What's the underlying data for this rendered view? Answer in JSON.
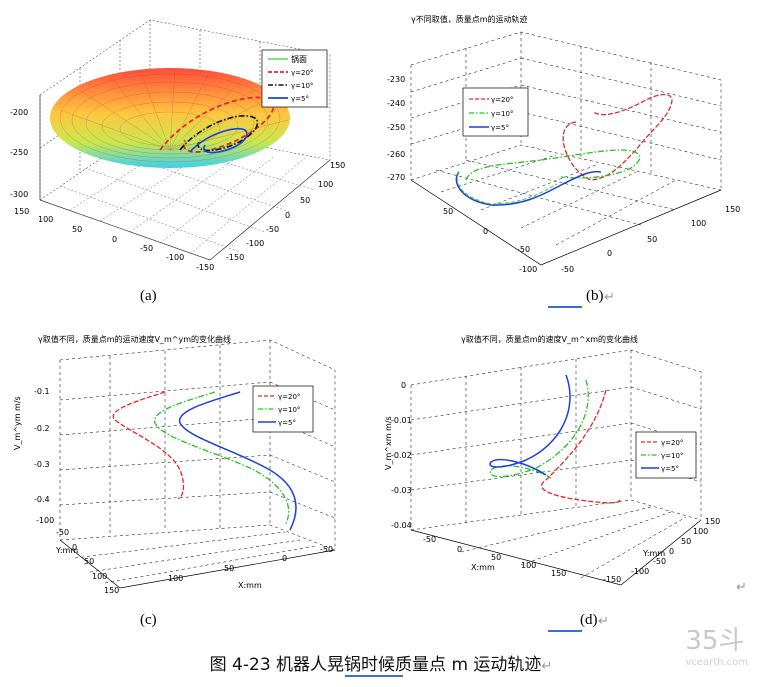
{
  "figure": {
    "caption": "图 4-23  机器人晃锅时候质量点 m 运动轨迹",
    "watermark": "35斗",
    "watermark_sub": "vcearth.com",
    "return_mark": "↵"
  },
  "panels": [
    {
      "label": "(a)",
      "legend": [
        "锅面",
        "γ=20°",
        "γ=10°",
        "γ=5°"
      ],
      "z_ticks": [
        "-200",
        "-250",
        "-300"
      ],
      "x_ticks": [
        "150",
        "100",
        "50",
        "0",
        "-50",
        "-100",
        "-150"
      ],
      "y_ticks": [
        "150",
        "100",
        "50",
        "0",
        "-50",
        "-100",
        "-150"
      ]
    },
    {
      "label": "(b)",
      "title": "γ不同取值，质量点m的运动轨迹",
      "legend": [
        "γ=20°",
        "γ=10°",
        "γ=5°"
      ],
      "z_ticks": [
        "-230",
        "-240",
        "-250",
        "-260",
        "-270"
      ],
      "x_ticks": [
        "50",
        "0",
        "-50",
        "-100"
      ],
      "y_ticks": [
        "150",
        "100",
        "50",
        "0",
        "-50"
      ]
    },
    {
      "label": "(c)",
      "title": "γ取值不同，质量点m的运动速度V_m^ym的变化曲线",
      "ylabel": "V_m^ym m/s",
      "xlabel": "X:mm",
      "ylabel2": "Y:mm",
      "legend": [
        "γ=20°",
        "γ=10°",
        "γ=5°"
      ],
      "z_ticks": [
        "-0.1",
        "-0.2",
        "-0.3",
        "-0.4"
      ],
      "y_ticks": [
        "-100",
        "-50",
        "0",
        "50",
        "100",
        "150"
      ],
      "x_ticks": [
        "100",
        "50",
        "0",
        "-50"
      ]
    },
    {
      "label": "(d)",
      "title": "γ取值不同，质量点m的速度V_m^xm的变化曲线",
      "ylabel": "V_m^xm m/s",
      "xlabel": "X:mm",
      "ylabel2": "Y:mm",
      "legend": [
        "γ=20°",
        "γ=10°",
        "γ=5°"
      ],
      "z_ticks": [
        "0",
        "-0.01",
        "-0.02",
        "-0.03",
        "-0.04"
      ],
      "x_ticks": [
        "-50",
        "0",
        "50",
        "100",
        "150"
      ],
      "y_ticks": [
        "150",
        "100",
        "50",
        "0",
        "-50",
        "-100",
        "-150"
      ]
    }
  ],
  "colors": {
    "gamma20": "#e8262a",
    "gamma10": "#22c322",
    "gamma5": "#1f3fe0",
    "surface_top": "#ff6a4a",
    "surface_mid": "#ffd35a",
    "surface_bottom": "#33c7e8",
    "grid": "#000000"
  }
}
